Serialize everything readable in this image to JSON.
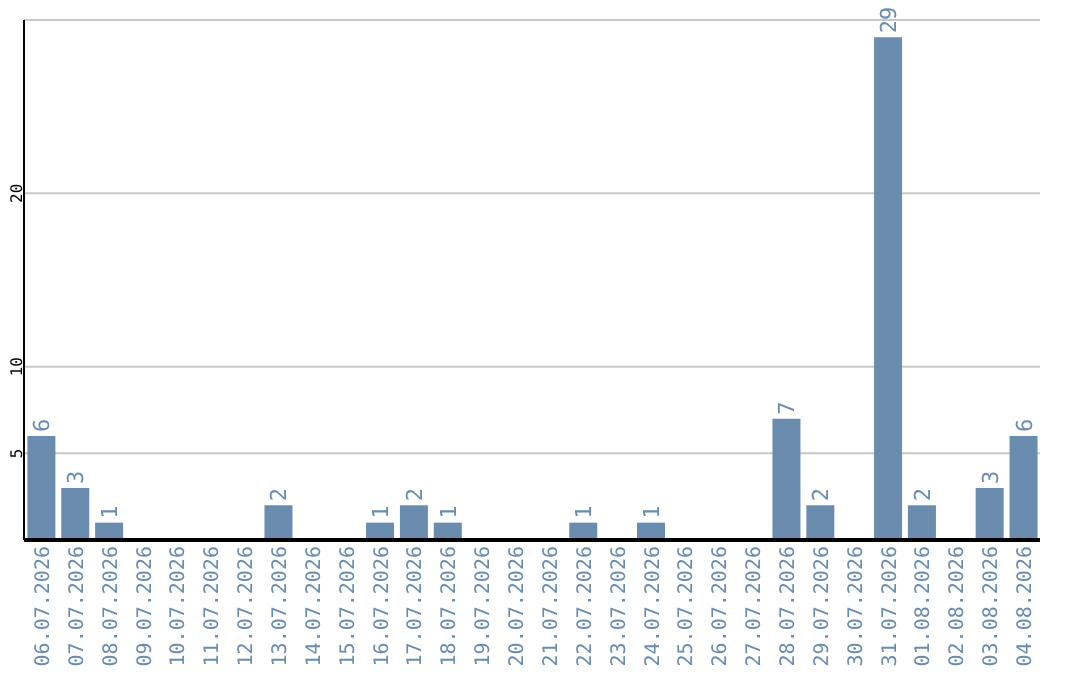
{
  "chart_data": {
    "type": "bar",
    "categories": [
      "06.07.2026",
      "07.07.2026",
      "08.07.2026",
      "09.07.2026",
      "10.07.2026",
      "11.07.2026",
      "12.07.2026",
      "13.07.2026",
      "14.07.2026",
      "15.07.2026",
      "16.07.2026",
      "17.07.2026",
      "18.07.2026",
      "19.07.2026",
      "20.07.2026",
      "21.07.2026",
      "22.07.2026",
      "23.07.2026",
      "24.07.2026",
      "25.07.2026",
      "26.07.2026",
      "27.07.2026",
      "28.07.2026",
      "29.07.2026",
      "30.07.2026",
      "31.07.2026",
      "01.08.2026",
      "02.08.2026",
      "03.08.2026",
      "04.08.2026"
    ],
    "values": [
      6,
      3,
      1,
      0,
      0,
      0,
      0,
      2,
      0,
      0,
      1,
      2,
      1,
      0,
      0,
      0,
      1,
      0,
      1,
      0,
      0,
      0,
      7,
      2,
      0,
      29,
      2,
      0,
      3,
      6
    ],
    "value_labels": [
      "6",
      "3",
      "1",
      null,
      null,
      null,
      null,
      "2",
      null,
      null,
      "1",
      "2",
      "1",
      null,
      null,
      null,
      "1",
      null,
      "1",
      null,
      null,
      null,
      "7",
      "2",
      null,
      "29",
      "2",
      null,
      "3",
      "6"
    ],
    "color": "#6a8caf",
    "ylim": [
      0,
      30
    ],
    "yticks": [
      5,
      10,
      20
    ],
    "grid": "y"
  }
}
